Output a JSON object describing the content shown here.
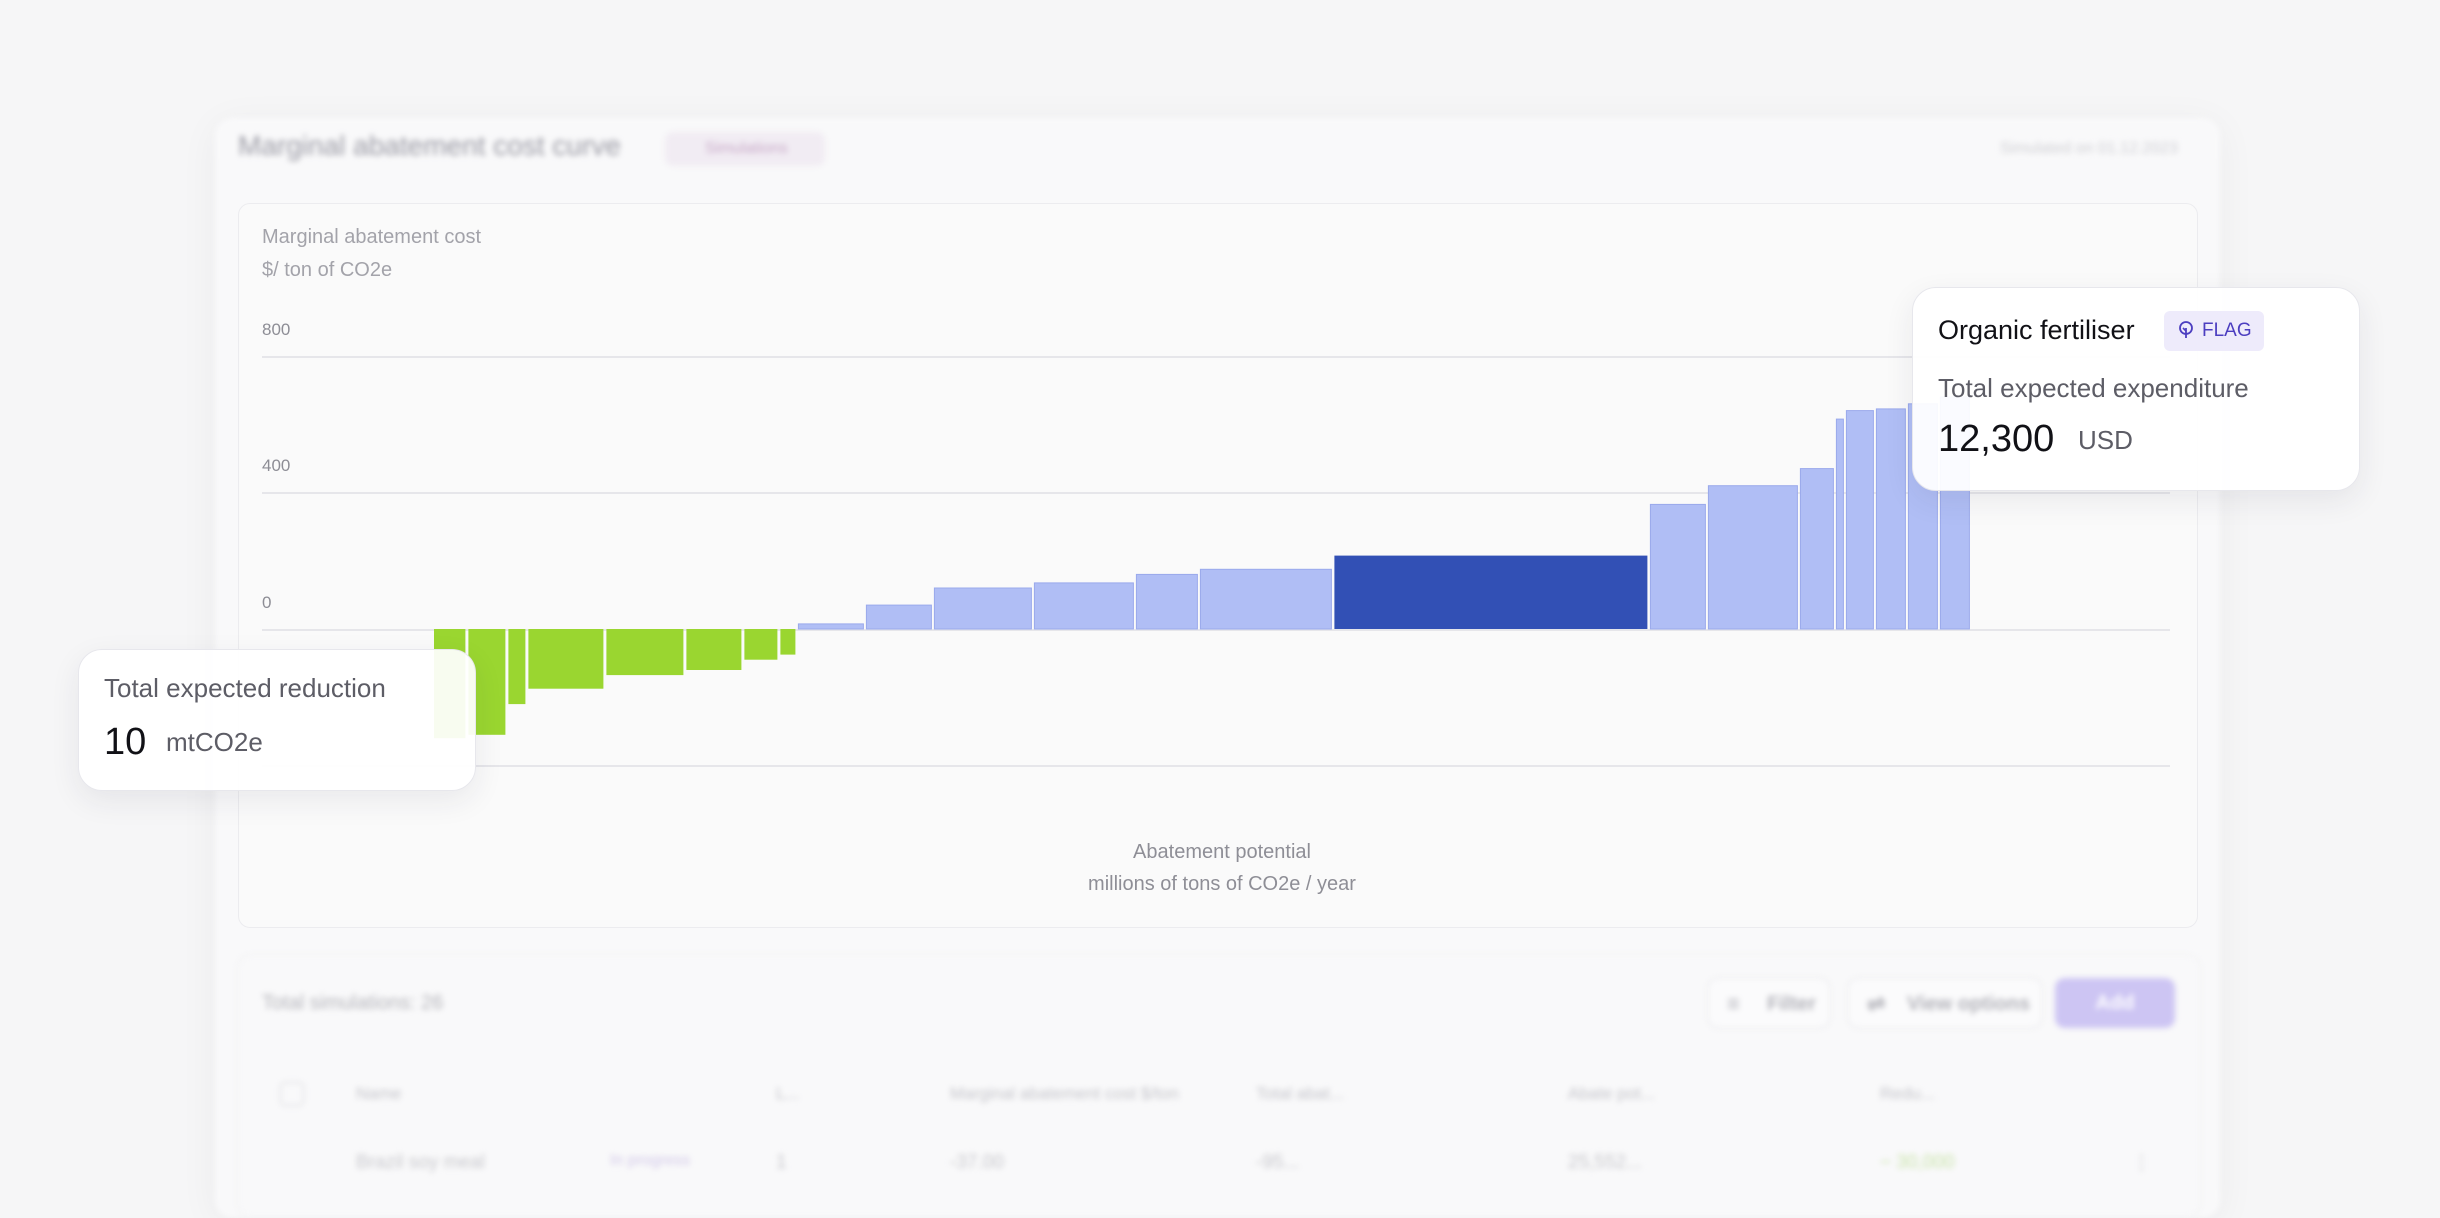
{
  "page": {
    "title": "Marginal abatement cost curve",
    "title_pill": "Simulations",
    "title_right": "Simulated on 01.12.2023"
  },
  "chart": {
    "y_title": "Marginal abatement cost",
    "y_unit": "$/ ton of CO2e",
    "x_title": "Abatement potential",
    "x_unit": "millions of  tons of CO2e / year",
    "y_ticks": [
      "800",
      "400",
      "0"
    ],
    "colors": {
      "negative": "#9ad630",
      "positive": "#b0bef5",
      "highlight": "#3250b5"
    }
  },
  "chart_data": {
    "type": "bar",
    "variable_width": true,
    "xlabel": "Abatement potential millions of  tons of CO2e / year",
    "ylabel": "Marginal abatement cost $/ ton of CO2e",
    "ylim": [
      -400,
      800
    ],
    "y_ticks": [
      800,
      400,
      0
    ],
    "grid": true,
    "bars": [
      {
        "width": 0.86,
        "value": -320,
        "color": "negative"
      },
      {
        "width": 1.0,
        "value": -310,
        "color": "negative"
      },
      {
        "width": 0.5,
        "value": -220,
        "color": "negative"
      },
      {
        "width": 1.95,
        "value": -175,
        "color": "negative"
      },
      {
        "width": 2.0,
        "value": -135,
        "color": "negative"
      },
      {
        "width": 1.45,
        "value": -120,
        "color": "negative"
      },
      {
        "width": 0.9,
        "value": -90,
        "color": "negative"
      },
      {
        "width": 0.45,
        "value": -75,
        "color": "negative"
      },
      {
        "width": 1.7,
        "value": 15,
        "color": "positive"
      },
      {
        "width": 1.7,
        "value": 70,
        "color": "positive"
      },
      {
        "width": 2.5,
        "value": 120,
        "color": "positive"
      },
      {
        "width": 2.55,
        "value": 135,
        "color": "positive"
      },
      {
        "width": 1.6,
        "value": 160,
        "color": "positive"
      },
      {
        "width": 3.35,
        "value": 175,
        "color": "positive"
      },
      {
        "width": 7.9,
        "value": 215,
        "color": "highlight"
      },
      {
        "width": 1.45,
        "value": 365,
        "color": "positive"
      },
      {
        "width": 2.3,
        "value": 420,
        "color": "positive"
      },
      {
        "width": 0.9,
        "value": 470,
        "color": "positive"
      },
      {
        "width": 0.25,
        "value": 615,
        "color": "positive"
      },
      {
        "width": 0.75,
        "value": 640,
        "color": "positive"
      },
      {
        "width": 0.8,
        "value": 645,
        "color": "positive"
      },
      {
        "width": 0.8,
        "value": 660,
        "color": "positive"
      },
      {
        "width": 0.8,
        "value": 680,
        "color": "positive"
      }
    ]
  },
  "reduction_card": {
    "label": "Total expected reduction",
    "value": "10",
    "unit": "mtCO2e"
  },
  "expenditure_card": {
    "title": "Organic fertiliser",
    "badge": "FLAG",
    "label": "Total expected expenditure",
    "value": "12,300",
    "unit": "USD"
  },
  "table": {
    "total": "Total simulations: 26",
    "filter_label": "Filter",
    "view_options_label": "View options",
    "add_label": "Add",
    "headers": [
      "Name",
      "L...",
      "Marginal abatement cost $/ton",
      "Total abat...",
      "Abate pot...",
      "Redu..."
    ],
    "first_row": [
      "Brazil soy meal",
      "In progress",
      "1",
      "-37.00",
      "-95...",
      "25,552...",
      "− 30,000",
      "⋮"
    ]
  }
}
